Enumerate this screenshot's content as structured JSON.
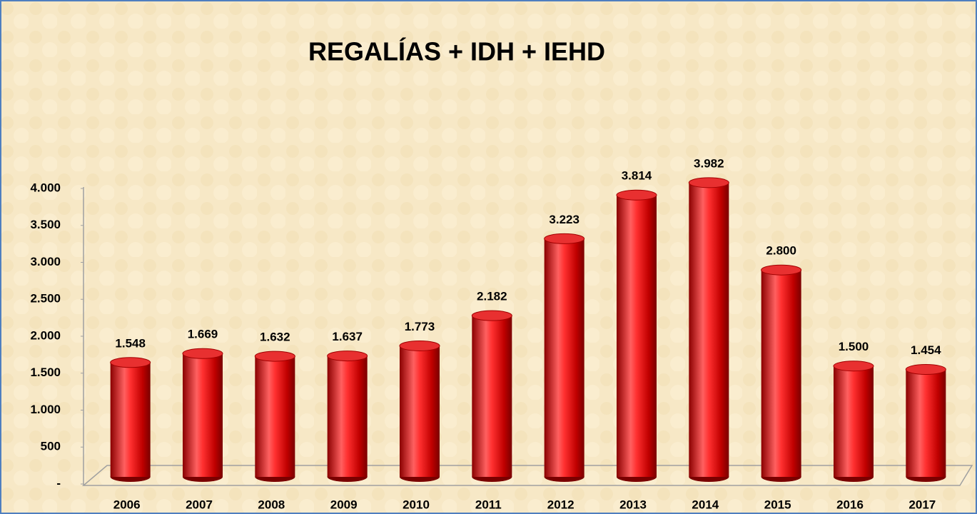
{
  "chart_data": {
    "type": "bar",
    "title": "REGALÍAS + IDH + IEHD",
    "categories": [
      "2006",
      "2007",
      "2008",
      "2009",
      "2010",
      "2011",
      "2012",
      "2013",
      "2014",
      "2015",
      "2016",
      "2017"
    ],
    "values": [
      1548,
      1669,
      1632,
      1637,
      1773,
      2182,
      3223,
      3814,
      3982,
      2800,
      1500,
      1454
    ],
    "value_labels": [
      "1.548",
      "1.669",
      "1.632",
      "1.637",
      "1.773",
      "2.182",
      "3.223",
      "3.814",
      "3.982",
      "2.800",
      "1.500",
      "1.454"
    ],
    "color": "#d40000",
    "ylim": [
      0,
      4000
    ],
    "yticks": [
      {
        "value": 0,
        "label": "-"
      },
      500,
      {
        "value": 1000,
        "label": "1.000"
      },
      {
        "value": 1500,
        "label": "1.500"
      },
      {
        "value": 2000,
        "label": "2.000"
      },
      {
        "value": 2500,
        "label": "2.500"
      },
      {
        "value": 3000,
        "label": "3.000"
      },
      {
        "value": 3500,
        "label": "3.500"
      },
      {
        "value": 4000,
        "label": "4.000"
      }
    ],
    "grid": false
  }
}
